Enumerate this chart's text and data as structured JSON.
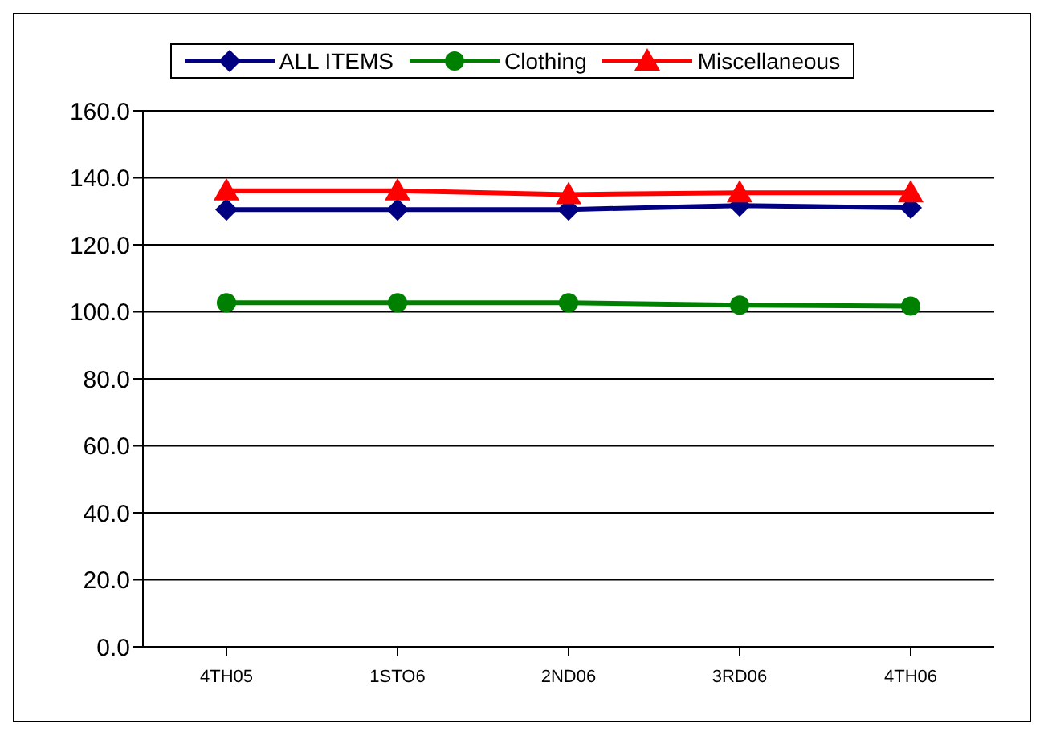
{
  "chart_data": {
    "type": "line",
    "categories": [
      "4TH05",
      "1STO6",
      "2ND06",
      "3RD06",
      "4TH06"
    ],
    "series": [
      {
        "name": "ALL ITEMS",
        "color": "#000080",
        "marker": "diamond",
        "values": [
          130.5,
          130.5,
          130.5,
          131.7,
          131.0
        ]
      },
      {
        "name": "Clothing",
        "color": "#008000",
        "marker": "circle",
        "values": [
          102.7,
          102.7,
          102.7,
          102.0,
          101.7
        ]
      },
      {
        "name": "Miscellaneous",
        "color": "#ff0000",
        "marker": "triangle",
        "values": [
          136.1,
          136.1,
          135.0,
          135.5,
          135.5
        ]
      }
    ],
    "ylim": [
      0,
      160
    ],
    "yticks": [
      {
        "value": 0,
        "label": "0.0"
      },
      {
        "value": 20,
        "label": "20.0"
      },
      {
        "value": 40,
        "label": "40.0"
      },
      {
        "value": 60,
        "label": "60.0"
      },
      {
        "value": 80,
        "label": "80.0"
      },
      {
        "value": 100,
        "label": "100.0"
      },
      {
        "value": 120,
        "label": "120.0"
      },
      {
        "value": 140,
        "label": "140.0"
      },
      {
        "value": 160,
        "label": "160.0"
      }
    ],
    "grid": "y",
    "legend": "top"
  }
}
